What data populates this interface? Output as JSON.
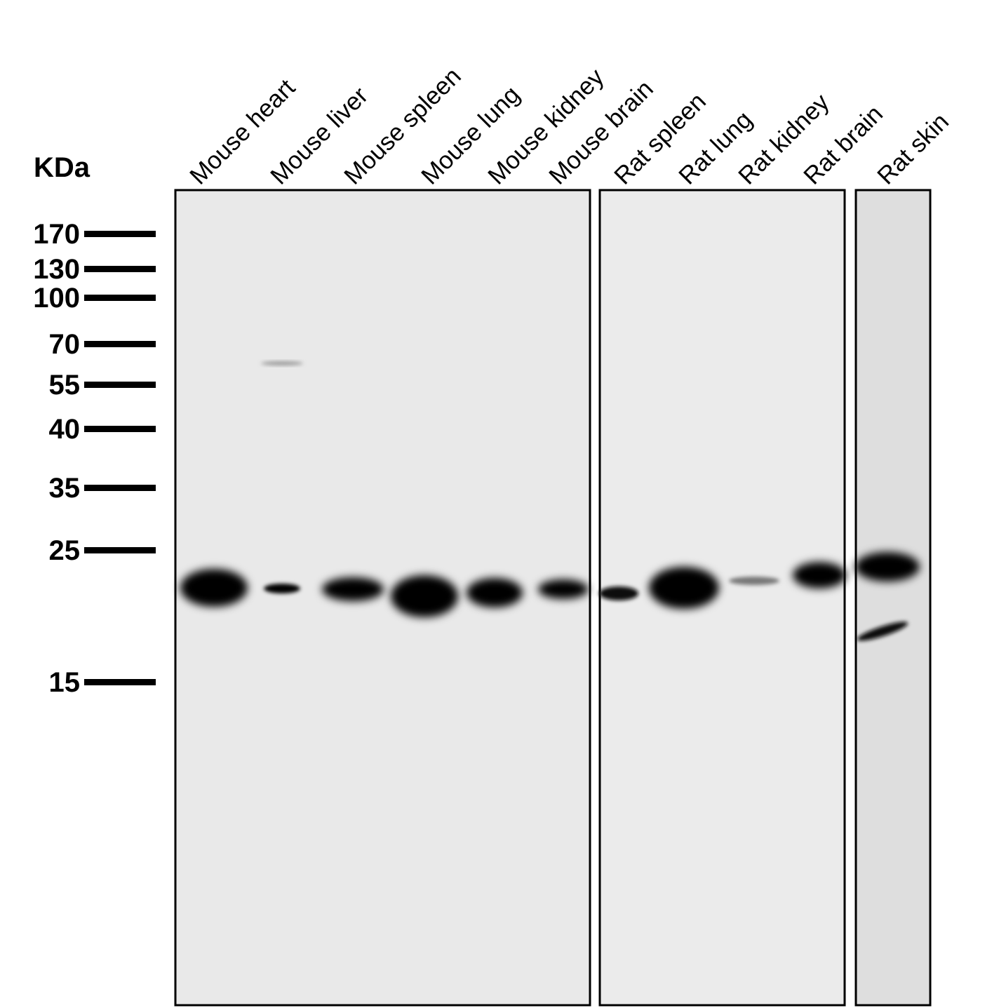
{
  "unit_label": "KDa",
  "markers": [
    "170",
    "130",
    "100",
    "70",
    "55",
    "40",
    "35",
    "25",
    "15"
  ],
  "lanes": [
    "Mouse heart",
    "Mouse liver",
    "Mouse spleen",
    "Mouse lung",
    "Mouse kidney",
    "Mouse brain",
    "Rat spleen",
    "Rat lung",
    "Rat kidney",
    "Rat brain",
    "Rat skin"
  ]
}
